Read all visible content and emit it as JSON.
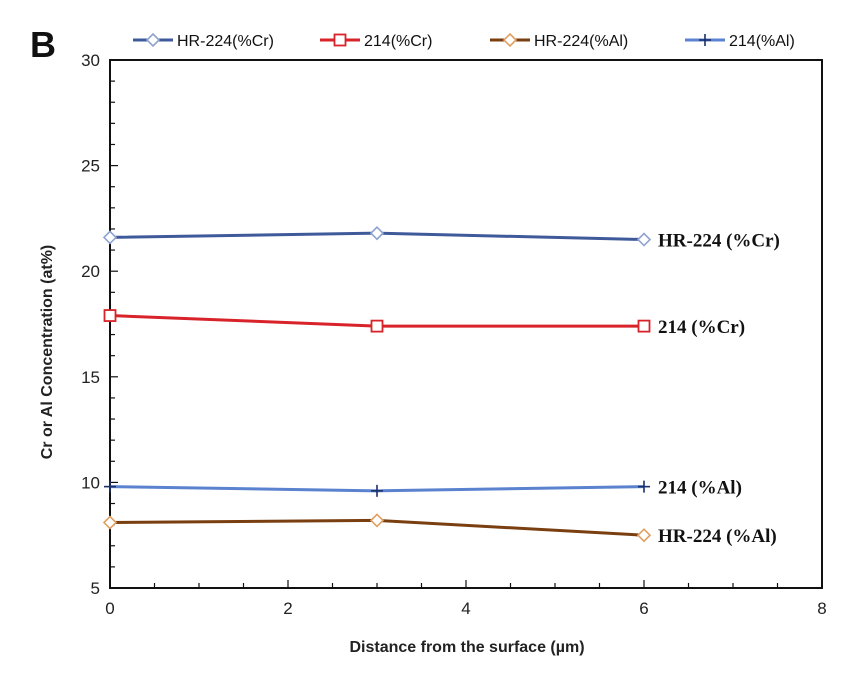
{
  "chart_data": {
    "type": "line",
    "panel_label": "B",
    "xlabel": "Distance from the surface (µm)",
    "ylabel": "Cr or Al Concentration (at%)",
    "xlim": [
      0,
      8
    ],
    "ylim": [
      5,
      30
    ],
    "x_ticks": [
      0,
      2,
      4,
      6,
      8
    ],
    "y_ticks": [
      5,
      10,
      15,
      20,
      25,
      30
    ],
    "grid": false,
    "legend_position": "top",
    "series": [
      {
        "name": "HR-224(%Cr)",
        "annotation": "HR-224 (%Cr)",
        "color": "#3f5a9a",
        "marker": "diamond",
        "x": [
          0,
          3,
          6
        ],
        "values": [
          21.6,
          21.8,
          21.5
        ]
      },
      {
        "name": "214(%Cr)",
        "annotation": "214 (%Cr)",
        "color": "#d8232a",
        "marker": "square",
        "x": [
          0,
          3,
          6
        ],
        "values": [
          17.9,
          17.4,
          17.4
        ]
      },
      {
        "name": "HR-224(%Al)",
        "annotation": "HR-224 (%Al)",
        "color": "#7a3f10",
        "marker": "diamond-orange",
        "x": [
          0,
          3,
          6
        ],
        "values": [
          8.1,
          8.2,
          7.5
        ]
      },
      {
        "name": "214(%Al)",
        "annotation": "214 (%Al)",
        "color": "#5b82cf",
        "marker": "plus",
        "x": [
          0,
          3,
          6
        ],
        "values": [
          9.8,
          9.6,
          9.8
        ]
      }
    ]
  }
}
